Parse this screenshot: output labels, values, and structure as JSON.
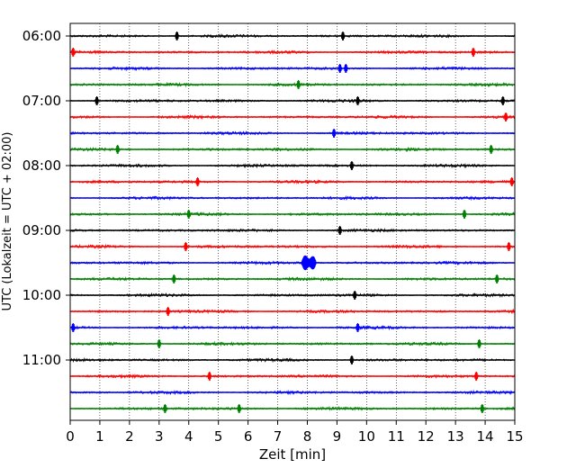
{
  "chart_data": {
    "type": "line",
    "title": "",
    "xlabel": "Zeit  [min]",
    "ylabel": "UTC (Lokalzeit = UTC + 02:00)",
    "xlim": [
      0,
      15
    ],
    "x_ticks": [
      0,
      1,
      2,
      3,
      4,
      5,
      6,
      7,
      8,
      9,
      10,
      11,
      12,
      13,
      14,
      15
    ],
    "y_tick_labels": [
      "06:00",
      "07:00",
      "08:00",
      "09:00",
      "10:00",
      "11:00"
    ],
    "grid": "vertical dotted lines at each minute",
    "trace_interval_minutes": 15,
    "color_cycle": [
      "#000000",
      "#ff0000",
      "#0000ff",
      "#008000"
    ],
    "traces": [
      {
        "start": "06:00",
        "color": "#000000",
        "events": [
          3.6,
          9.2
        ]
      },
      {
        "start": "06:15",
        "color": "#ff0000",
        "events": [
          0.1,
          13.6
        ]
      },
      {
        "start": "06:30",
        "color": "#0000ff",
        "events": [
          9.1,
          9.3
        ]
      },
      {
        "start": "06:45",
        "color": "#008000",
        "events": [
          7.7
        ]
      },
      {
        "start": "07:00",
        "color": "#000000",
        "events": [
          0.9,
          9.7,
          14.6
        ]
      },
      {
        "start": "07:15",
        "color": "#ff0000",
        "events": [
          14.7
        ]
      },
      {
        "start": "07:30",
        "color": "#0000ff",
        "events": [
          8.9
        ]
      },
      {
        "start": "07:45",
        "color": "#008000",
        "events": [
          1.6,
          14.2
        ]
      },
      {
        "start": "08:00",
        "color": "#000000",
        "events": [
          9.5
        ]
      },
      {
        "start": "08:15",
        "color": "#ff0000",
        "events": [
          4.3,
          14.9
        ]
      },
      {
        "start": "08:30",
        "color": "#0000ff",
        "events": []
      },
      {
        "start": "08:45",
        "color": "#008000",
        "events": [
          4.0,
          13.3
        ]
      },
      {
        "start": "09:00",
        "color": "#000000",
        "events": [
          9.1
        ]
      },
      {
        "start": "09:15",
        "color": "#ff0000",
        "events": [
          3.9,
          14.8
        ]
      },
      {
        "start": "09:30",
        "color": "#0000ff",
        "events": [
          8.0
        ]
      },
      {
        "start": "09:45",
        "color": "#008000",
        "events": [
          3.5,
          14.4
        ]
      },
      {
        "start": "10:00",
        "color": "#000000",
        "events": [
          9.6
        ]
      },
      {
        "start": "10:15",
        "color": "#ff0000",
        "events": [
          3.3
        ]
      },
      {
        "start": "10:30",
        "color": "#0000ff",
        "events": [
          0.1,
          9.7
        ]
      },
      {
        "start": "10:45",
        "color": "#008000",
        "events": [
          3.0,
          13.8
        ]
      },
      {
        "start": "11:00",
        "color": "#000000",
        "events": [
          9.5
        ]
      },
      {
        "start": "11:15",
        "color": "#ff0000",
        "events": [
          4.7,
          13.7
        ]
      },
      {
        "start": "11:30",
        "color": "#0000ff",
        "events": []
      },
      {
        "start": "11:45",
        "color": "#008000",
        "events": [
          3.2,
          5.7,
          13.9
        ]
      }
    ],
    "major_event": {
      "trace_start": "09:30",
      "x_from": 7.8,
      "x_to": 8.3
    }
  }
}
